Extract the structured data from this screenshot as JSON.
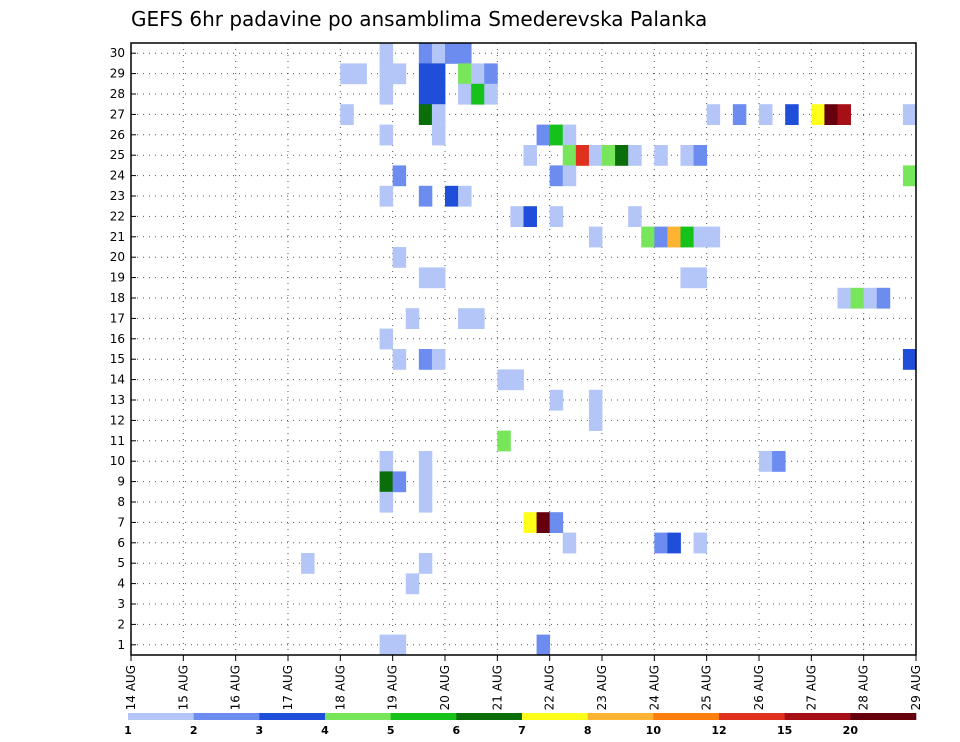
{
  "chart_data": {
    "type": "heatmap",
    "title": "GEFS 6hr padavine po ansamblima Smederevska Palanka",
    "x_tick_labels": [
      "14 AUG",
      "15 AUG",
      "16 AUG",
      "17 AUG",
      "18 AUG",
      "19 AUG",
      "20 AUG",
      "21 AUG",
      "22 AUG",
      "23 AUG",
      "24 AUG",
      "25 AUG",
      "26 AUG",
      "27 AUG",
      "28 AUG",
      "29 AUG"
    ],
    "x_range": [
      0,
      60
    ],
    "y_ticks": [
      1,
      2,
      3,
      4,
      5,
      6,
      7,
      8,
      9,
      10,
      11,
      12,
      13,
      14,
      15,
      16,
      17,
      18,
      19,
      20,
      21,
      22,
      23,
      24,
      25,
      26,
      27,
      28,
      29,
      30
    ],
    "y_range": [
      0,
      30
    ],
    "grid": true,
    "colorbar": {
      "levels": [
        "1",
        "2",
        "3",
        "4",
        "5",
        "6",
        "7",
        "8",
        "10",
        "12",
        "15",
        "20"
      ],
      "colors": [
        "#b3c6f7",
        "#6d8cf0",
        "#1f4fd8",
        "#78e65a",
        "#14c21a",
        "#0b6e0b",
        "#ffff1a",
        "#ffb333",
        "#ff7f0e",
        "#e0301e",
        "#a50f15",
        "#67000d"
      ]
    },
    "cells": [
      [
        16,
        29,
        0
      ],
      [
        17,
        29,
        0
      ],
      [
        16,
        27,
        0
      ],
      [
        22,
        30,
        1
      ],
      [
        23,
        30,
        0
      ],
      [
        24,
        30,
        1
      ],
      [
        25,
        30,
        1
      ],
      [
        22,
        29,
        2
      ],
      [
        23,
        29,
        2
      ],
      [
        22,
        28,
        2
      ],
      [
        23,
        28,
        2
      ],
      [
        22,
        27,
        5
      ],
      [
        23,
        27,
        0
      ],
      [
        23,
        26,
        0
      ],
      [
        19,
        29,
        0
      ],
      [
        20,
        29,
        0
      ],
      [
        19,
        30,
        0
      ],
      [
        19,
        28,
        0
      ],
      [
        19,
        26,
        0
      ],
      [
        25,
        29,
        3
      ],
      [
        26,
        29,
        0
      ],
      [
        27,
        29,
        1
      ],
      [
        25,
        28,
        0
      ],
      [
        26,
        28,
        4
      ],
      [
        27,
        28,
        0
      ],
      [
        44,
        27,
        0
      ],
      [
        46,
        27,
        1
      ],
      [
        48,
        27,
        0
      ],
      [
        50,
        27,
        2
      ],
      [
        52,
        27,
        6
      ],
      [
        53,
        27,
        11
      ],
      [
        54,
        27,
        10
      ],
      [
        59,
        27,
        0
      ],
      [
        31,
        26,
        1
      ],
      [
        32,
        26,
        4
      ],
      [
        33,
        26,
        0
      ],
      [
        30,
        25,
        0
      ],
      [
        33,
        25,
        3
      ],
      [
        34,
        25,
        9
      ],
      [
        35,
        25,
        0
      ],
      [
        36,
        25,
        3
      ],
      [
        37,
        25,
        5
      ],
      [
        38,
        25,
        0
      ],
      [
        40,
        25,
        0
      ],
      [
        42,
        25,
        0
      ],
      [
        43,
        25,
        1
      ],
      [
        20,
        24,
        1
      ],
      [
        32,
        24,
        1
      ],
      [
        33,
        24,
        0
      ],
      [
        59,
        24,
        3
      ],
      [
        19,
        23,
        0
      ],
      [
        22,
        23,
        1
      ],
      [
        24,
        23,
        2
      ],
      [
        25,
        23,
        0
      ],
      [
        29,
        22,
        0
      ],
      [
        30,
        22,
        2
      ],
      [
        32,
        22,
        0
      ],
      [
        38,
        22,
        0
      ],
      [
        35,
        21,
        0
      ],
      [
        39,
        21,
        3
      ],
      [
        40,
        21,
        1
      ],
      [
        41,
        21,
        7
      ],
      [
        42,
        21,
        4
      ],
      [
        43,
        21,
        0
      ],
      [
        44,
        21,
        0
      ],
      [
        20,
        20,
        0
      ],
      [
        22,
        19,
        0
      ],
      [
        23,
        19,
        0
      ],
      [
        42,
        19,
        0
      ],
      [
        43,
        19,
        0
      ],
      [
        54,
        18,
        0
      ],
      [
        55,
        18,
        3
      ],
      [
        56,
        18,
        0
      ],
      [
        57,
        18,
        1
      ],
      [
        21,
        17,
        0
      ],
      [
        25,
        17,
        0
      ],
      [
        26,
        17,
        0
      ],
      [
        19,
        16,
        0
      ],
      [
        20,
        15,
        0
      ],
      [
        22,
        15,
        1
      ],
      [
        23,
        15,
        0
      ],
      [
        59,
        15,
        2
      ],
      [
        28,
        14,
        0
      ],
      [
        29,
        14,
        0
      ],
      [
        32,
        13,
        0
      ],
      [
        35,
        13,
        0
      ],
      [
        35,
        12,
        0
      ],
      [
        28,
        11,
        3
      ],
      [
        19,
        10,
        0
      ],
      [
        22,
        10,
        0
      ],
      [
        48,
        10,
        0
      ],
      [
        49,
        10,
        1
      ],
      [
        19,
        9,
        5
      ],
      [
        20,
        9,
        1
      ],
      [
        22,
        9,
        0
      ],
      [
        19,
        8,
        0
      ],
      [
        22,
        8,
        0
      ],
      [
        30,
        7,
        6
      ],
      [
        31,
        7,
        11
      ],
      [
        32,
        7,
        1
      ],
      [
        33,
        6,
        0
      ],
      [
        40,
        6,
        1
      ],
      [
        41,
        6,
        2
      ],
      [
        43,
        6,
        0
      ],
      [
        13,
        5,
        0
      ],
      [
        22,
        5,
        0
      ],
      [
        21,
        4,
        0
      ],
      [
        19,
        1,
        0
      ],
      [
        20,
        1,
        0
      ],
      [
        31,
        1,
        1
      ]
    ]
  }
}
